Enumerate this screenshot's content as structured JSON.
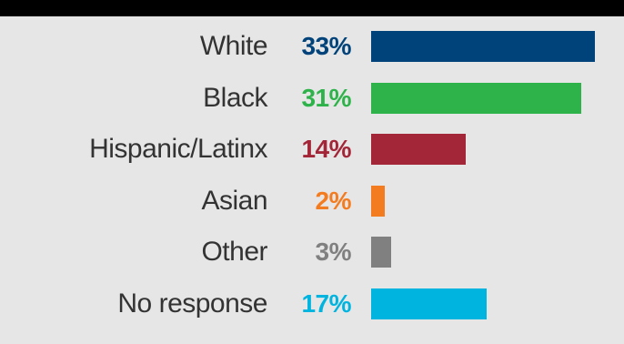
{
  "chart_data": {
    "type": "bar",
    "orientation": "horizontal",
    "categories": [
      "White",
      "Black",
      "Hispanic/Latinx",
      "Asian",
      "Other",
      "No response"
    ],
    "values": [
      33,
      31,
      14,
      2,
      3,
      17
    ],
    "value_labels": [
      "33%",
      "31%",
      "14%",
      "2%",
      "3%",
      "17%"
    ],
    "colors": [
      "#00427a",
      "#2db34a",
      "#a32638",
      "#f47c20",
      "#808080",
      "#00b4e0"
    ],
    "xlim": [
      0,
      33
    ],
    "grid": false,
    "legend": "none",
    "title": "",
    "xlabel": "",
    "ylabel": ""
  }
}
